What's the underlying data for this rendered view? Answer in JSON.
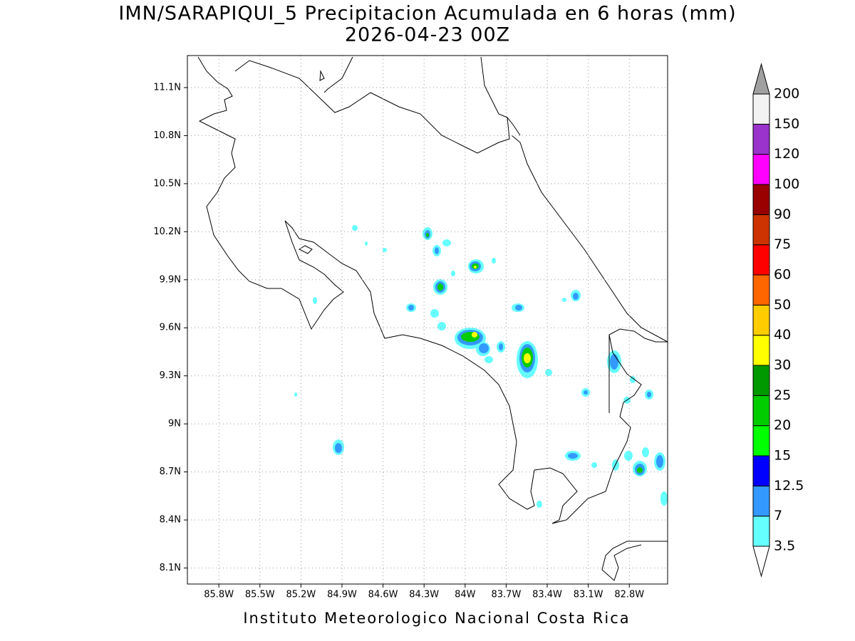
{
  "map": {
    "title": "IMN/SARAPIQUI_5 Precipitacion Acumulada en 6 horas (mm)",
    "subtitle": "2026-04-23 00Z",
    "footer": "Instituto Meteorologico Nacional Costa Rica",
    "xlim": [
      -86.03,
      -82.52
    ],
    "ylim": [
      8.0,
      11.3
    ],
    "grid": true,
    "xticks": [
      {
        "value": -85.8,
        "label": "85.8W"
      },
      {
        "value": -85.5,
        "label": "85.5W"
      },
      {
        "value": -85.2,
        "label": "85.2W"
      },
      {
        "value": -84.9,
        "label": "84.9W"
      },
      {
        "value": -84.6,
        "label": "84.6W"
      },
      {
        "value": -84.3,
        "label": "84.3W"
      },
      {
        "value": -84.0,
        "label": "84W"
      },
      {
        "value": -83.7,
        "label": "83.7W"
      },
      {
        "value": -83.4,
        "label": "83.4W"
      },
      {
        "value": -83.1,
        "label": "83.1W"
      },
      {
        "value": -82.8,
        "label": "82.8W"
      }
    ],
    "yticks": [
      {
        "value": 8.1,
        "label": "8.1N"
      },
      {
        "value": 8.4,
        "label": "8.4N"
      },
      {
        "value": 8.7,
        "label": "8.7N"
      },
      {
        "value": 9.0,
        "label": "9N"
      },
      {
        "value": 9.3,
        "label": "9.3N"
      },
      {
        "value": 9.6,
        "label": "9.6N"
      },
      {
        "value": 9.9,
        "label": "9.9N"
      },
      {
        "value": 10.2,
        "label": "10.2N"
      },
      {
        "value": 10.5,
        "label": "10.5N"
      },
      {
        "value": 10.8,
        "label": "10.8N"
      },
      {
        "value": 11.1,
        "label": "11.1N"
      }
    ],
    "colorbar": {
      "levels": [
        3.5,
        7,
        12.5,
        15,
        20,
        25,
        30,
        40,
        50,
        60,
        75,
        90,
        100,
        120,
        150,
        200
      ],
      "colors": [
        "#66ffff",
        "#3399ff",
        "#0000ff",
        "#00ff00",
        "#00cc00",
        "#009900",
        "#ffff00",
        "#ffcc00",
        "#ff6600",
        "#ff0000",
        "#cc3300",
        "#990000",
        "#ff00ff",
        "#9933cc",
        "#f2f2f2"
      ],
      "under_color": "#ffffff",
      "over_color": "#a0a0a0"
    }
  }
}
